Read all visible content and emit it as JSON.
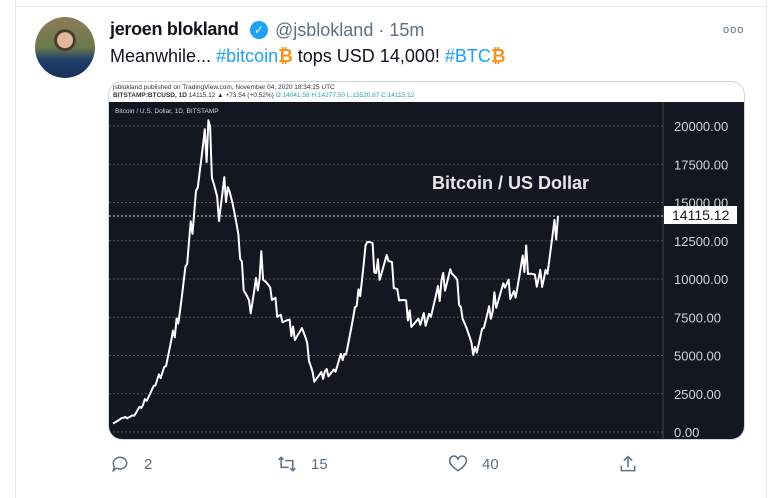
{
  "tweet": {
    "author_name": "jeroen blokland",
    "handle": "@jsblokland",
    "time": "· 15m",
    "text": {
      "prefix": "Meanwhile... ",
      "tag1": "#bitcoin",
      "emoji": "₿",
      "middle": " tops USD 14,000! ",
      "tag2": "#BTC"
    },
    "more_label": "ooo"
  },
  "media": {
    "header_line1": "jsblokland published on TradingView.com, November 04, 2020 18:34:25 UTC",
    "header_symbol": "BITSTAMP:BTCUSD, 1D",
    "header_price": "14115.12 ▲ +73.54 (+0.52%)",
    "header_ohlc": "O:14041.58 H:14277.50 L:13520.87 C:14115.12",
    "chart_title": "Bitcoin / U.S. Dollar, 1D, BITSTAMP",
    "overlay_title": "Bitcoin / US Dollar",
    "last_price_label": "14115.12"
  },
  "chart_data": {
    "type": "line",
    "title": "Bitcoin / US Dollar",
    "yticks": [
      "20000.00",
      "17500.00",
      "15000.00",
      "12500.00",
      "10000.00",
      "7500.00",
      "5000.00",
      "2500.00",
      "0.00"
    ],
    "ylim": [
      0,
      20000
    ],
    "grid": true,
    "series_color": "#ffffff",
    "background": "#131722",
    "values": [
      600,
      900,
      1100,
      2000,
      3000,
      4500,
      7000,
      11000,
      17000,
      19500,
      14000,
      17000,
      11000,
      8000,
      11000,
      8500,
      7500,
      6500,
      6500,
      3500,
      3800,
      4000,
      5500,
      8000,
      12800,
      10500,
      11000,
      9000,
      7500,
      7000,
      8000,
      9500,
      10500,
      8000,
      4900,
      7000,
      8500,
      9300,
      9200,
      11500,
      9500,
      11000,
      14115.12
    ],
    "last_value": 14115.12
  },
  "actions": {
    "replies": "2",
    "retweets": "15",
    "likes": "40"
  }
}
